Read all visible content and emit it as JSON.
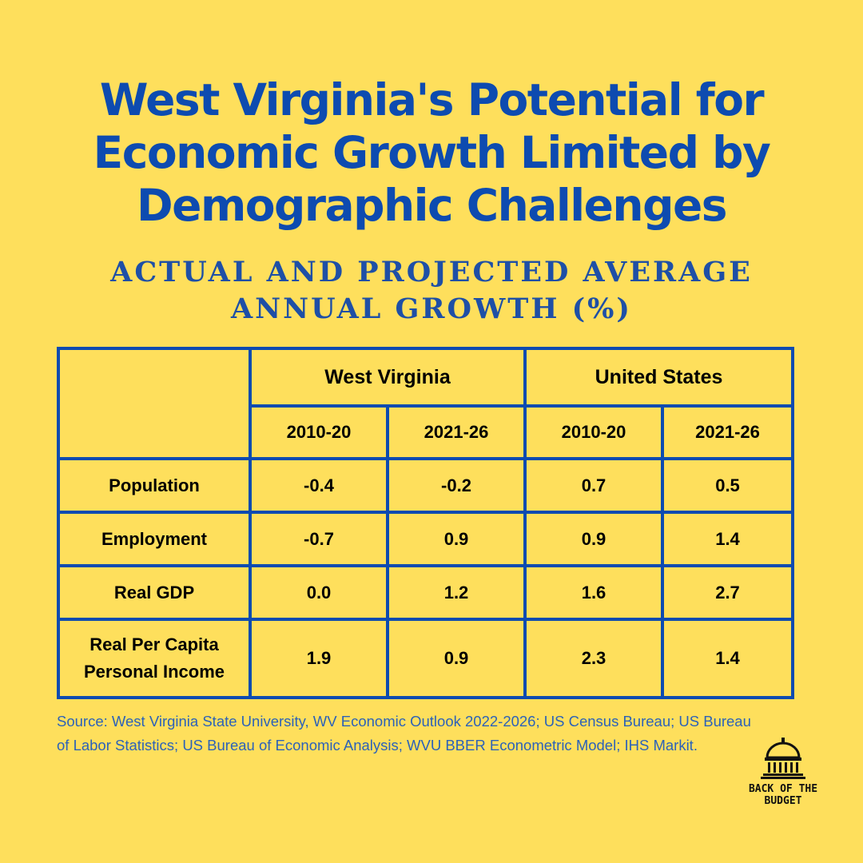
{
  "title": {
    "line1": "West Virginia's Potential for",
    "line2": "Economic Growth Limited by",
    "line3": "Demographic Challenges"
  },
  "subtitle": {
    "line1": "ACTUAL AND PROJECTED AVERAGE",
    "line2": "ANNUAL GROWTH (%)"
  },
  "table": {
    "regions": [
      "West Virginia",
      "United States"
    ],
    "periods": [
      "2010-20",
      "2021-26",
      "2010-20",
      "2021-26"
    ],
    "rows": [
      {
        "label": "Population",
        "values": [
          "-0.4",
          "-0.2",
          "0.7",
          "0.5"
        ]
      },
      {
        "label": "Employment",
        "values": [
          "-0.7",
          "0.9",
          "0.9",
          "1.4"
        ]
      },
      {
        "label": "Real GDP",
        "values": [
          "0.0",
          "1.2",
          "1.6",
          "2.7"
        ]
      },
      {
        "label_line1": "Real Per Capita",
        "label_line2": "Personal Income",
        "values": [
          "1.9",
          "0.9",
          "2.3",
          "1.4"
        ]
      }
    ]
  },
  "source": "Source: West Virginia State University, WV Economic Outlook 2022-2026; US Census Bureau; US Bureau of Labor Statistics; US Bureau of Economic Analysis; WVU BBER Econometric Model; IHS Markit.",
  "logo": {
    "icon": "capitol-dome-icon",
    "line1": "BACK OF THE",
    "line2": "BUDGET"
  },
  "colors": {
    "background": "#fedf5c",
    "title": "#0d4bb0",
    "table_border": "#0d4bb0",
    "source_text": "#2c62b8"
  }
}
